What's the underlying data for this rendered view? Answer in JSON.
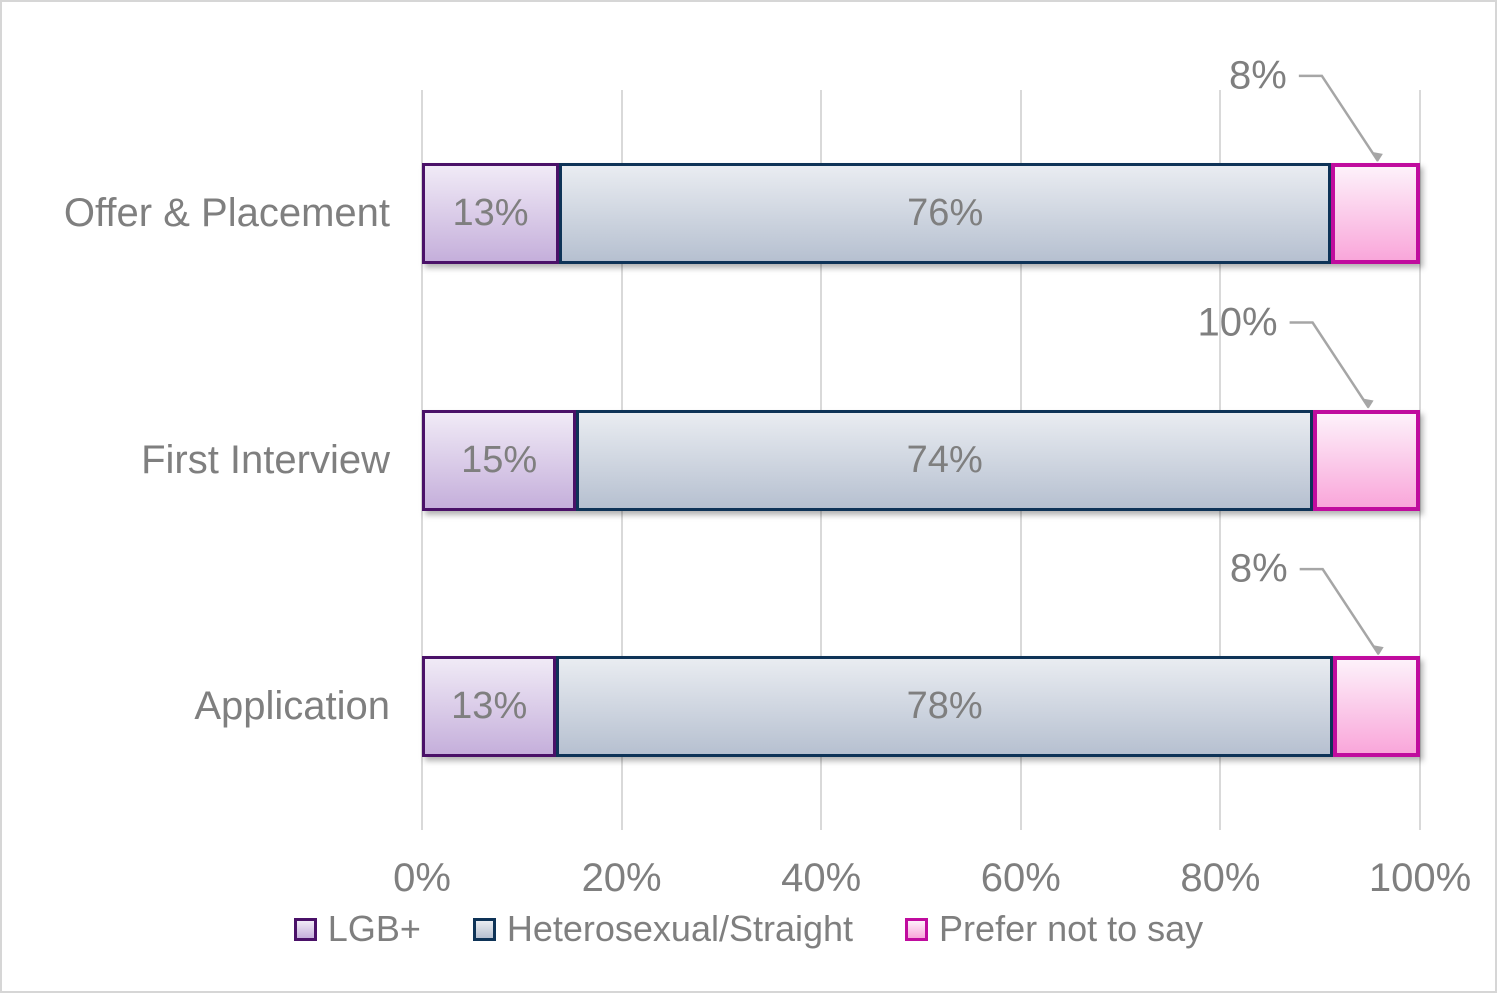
{
  "chart_data": {
    "type": "bar",
    "subtype": "horizontal-stacked-100",
    "title": "",
    "categories": [
      "Offer & Placement",
      "First Interview",
      "Application"
    ],
    "series": [
      {
        "name": "LGB+",
        "values": [
          13,
          15,
          13
        ]
      },
      {
        "name": "Heterosexual/Straight",
        "values": [
          76,
          74,
          78
        ]
      },
      {
        "name": "Prefer not to say",
        "values": [
          8,
          10,
          8
        ]
      }
    ],
    "data_labels": [
      [
        "13%",
        "76%",
        "8%"
      ],
      [
        "15%",
        "74%",
        "10%"
      ],
      [
        "13%",
        "78%",
        "8%"
      ]
    ],
    "callout_series": "Prefer not to say",
    "x_ticks": [
      "0%",
      "20%",
      "40%",
      "60%",
      "80%",
      "100%"
    ],
    "xlim": [
      0,
      100
    ],
    "grid": true,
    "legend_position": "bottom"
  },
  "styles": {
    "background": "#FFFFFF",
    "frame_border": "#D6D6D6",
    "text_color": "#7F7F7F",
    "gridline_color": "#D9D9D9",
    "leader_color": "#A6A6A6",
    "series_colors": [
      {
        "name": "LGB+",
        "border": "#4A1168",
        "fill_top": "#F0EAF6",
        "fill_bottom": "#C5AFDB"
      },
      {
        "name": "Heterosexual/Straight",
        "border": "#0E3357",
        "fill_top": "#E9ECF1",
        "fill_bottom": "#B6C0D0"
      },
      {
        "name": "Prefer not to say",
        "border": "#C00C9E",
        "fill_top": "#FDF1FA",
        "fill_bottom": "#F9A6DA"
      }
    ]
  }
}
